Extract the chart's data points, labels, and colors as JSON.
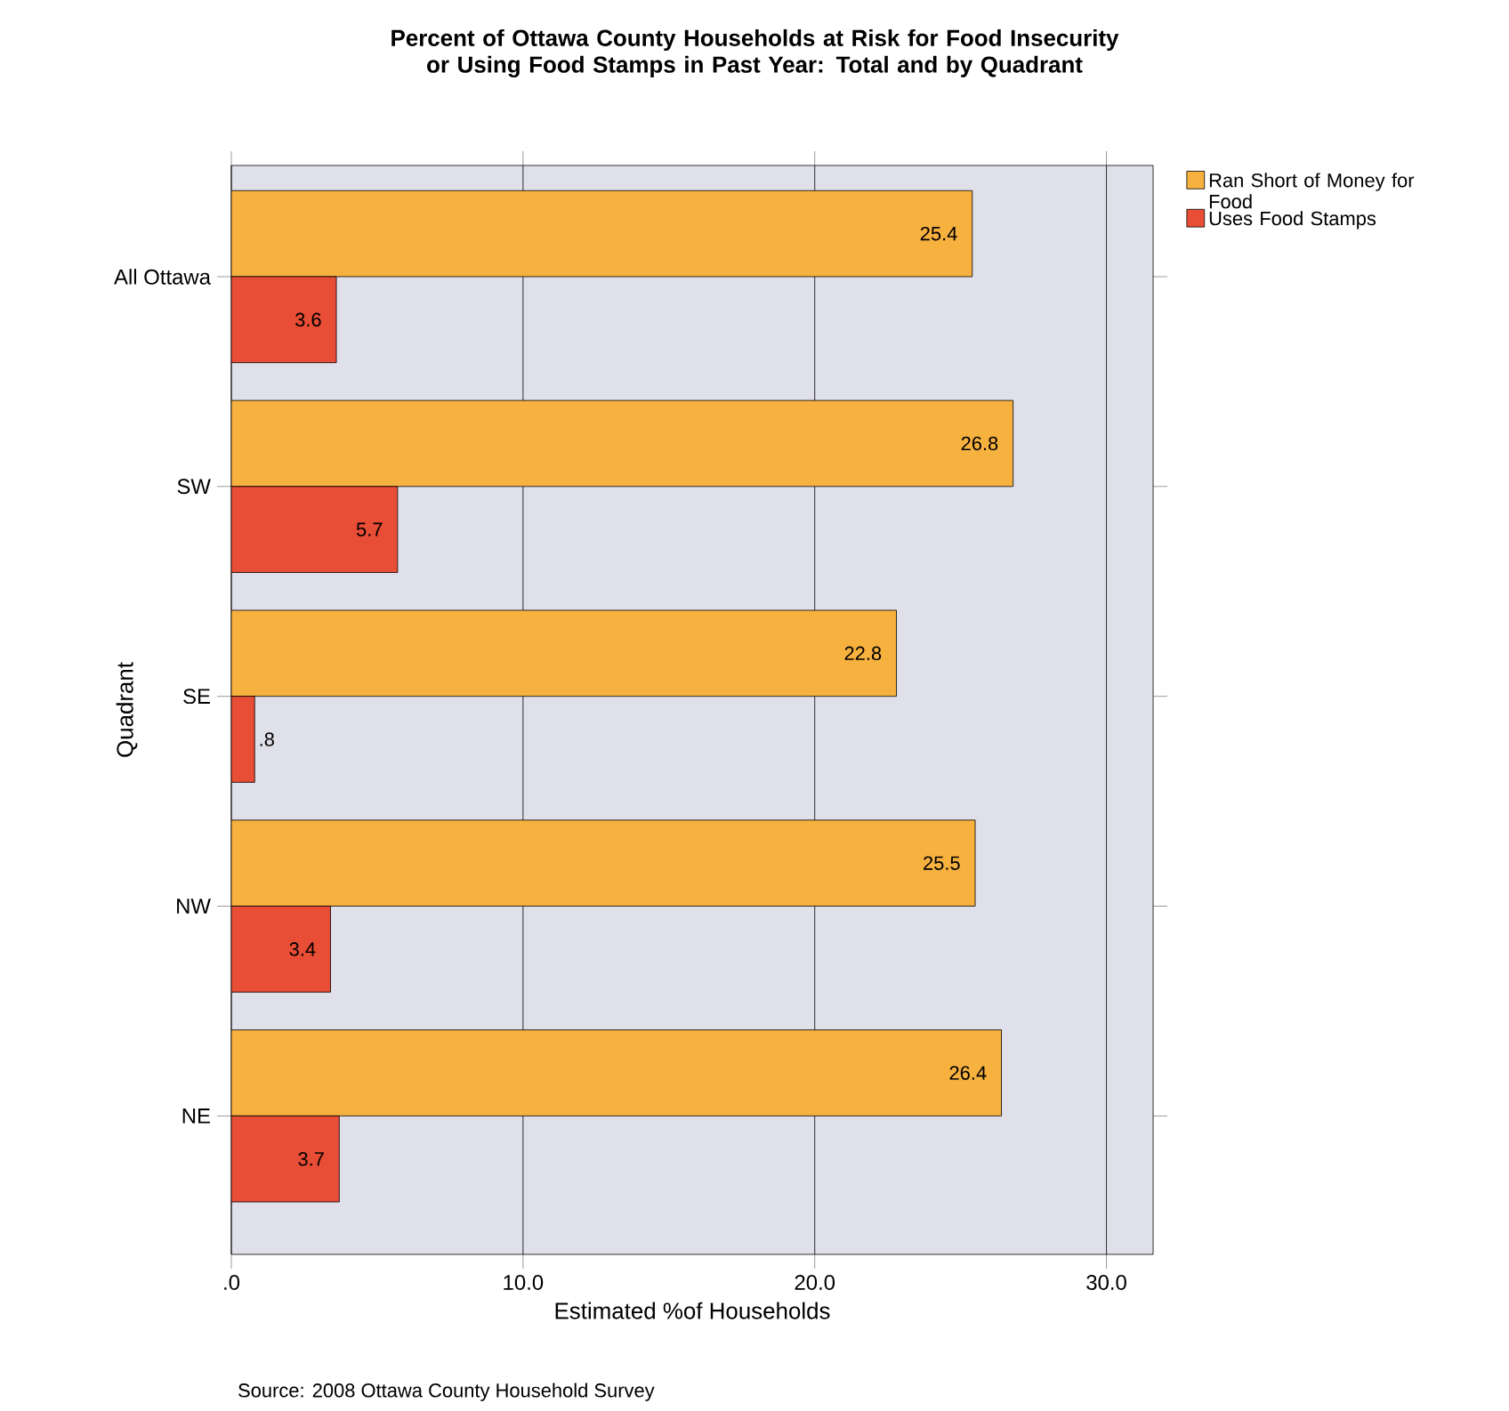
{
  "chart_data": {
    "type": "bar",
    "orientation": "horizontal",
    "title": "Percent of Ottawa County Households at Risk for Food Insecurity or Using Food Stamps in Past Year: Total and by Quadrant",
    "xlabel": "Estimated %of Households",
    "ylabel": "Quadrant",
    "categories": [
      "All Ottawa",
      "SW",
      "SE",
      "NW",
      "NE"
    ],
    "series": [
      {
        "name": "Ran Short of Money for Food",
        "color": "#f7b13f",
        "values": [
          25.4,
          26.8,
          22.8,
          25.5,
          26.4
        ],
        "value_labels": [
          "25.4",
          "26.8",
          "22.8",
          "25.5",
          "26.4"
        ]
      },
      {
        "name": "Uses Food Stamps",
        "color": "#e84d35",
        "values": [
          3.6,
          5.7,
          0.8,
          3.4,
          3.7
        ],
        "value_labels": [
          "3.6",
          "5.7",
          ".8",
          "3.4",
          "3.7"
        ]
      }
    ],
    "xlim": [
      0,
      31.6
    ],
    "xticks": [
      {
        "value": 0,
        "label": ".0"
      },
      {
        "value": 10,
        "label": "10.0"
      },
      {
        "value": 20,
        "label": "20.0"
      },
      {
        "value": 30,
        "label": "30.0"
      }
    ],
    "grid": "x",
    "legend": "top right",
    "annotations": [
      "Source: 2008 Ottawa County Household Survey"
    ]
  }
}
